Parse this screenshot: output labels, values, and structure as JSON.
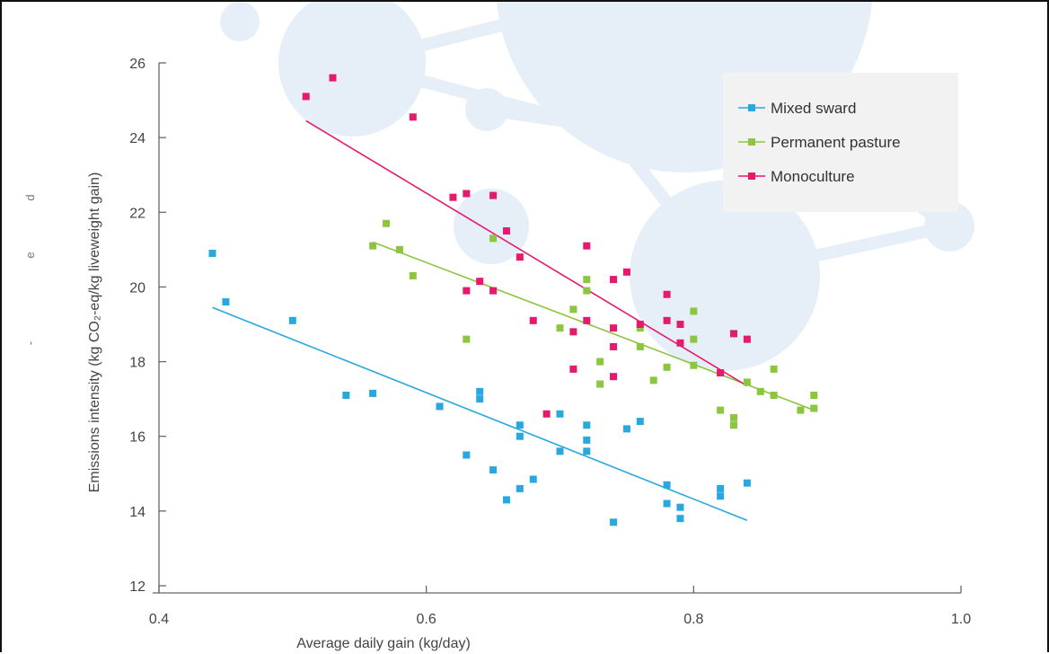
{
  "chart_data": {
    "type": "scatter",
    "title": "",
    "xlabel": "Average daily gain (kg/day)",
    "ylabel": "Emissions intensity (kg CO₂-eq/kg liveweight gain)",
    "xlim": [
      0.4,
      1.0
    ],
    "ylim": [
      12,
      26
    ],
    "x_ticks": [
      "0.4",
      "0.6",
      "0.8",
      "1.0"
    ],
    "y_ticks": [
      "12",
      "14",
      "16",
      "18",
      "20",
      "22",
      "24",
      "26"
    ],
    "legend_position": "top-right",
    "grid": false,
    "series": [
      {
        "name": "Mixed sward",
        "color": "#29a7df",
        "points": [
          [
            0.44,
            20.9
          ],
          [
            0.45,
            19.6
          ],
          [
            0.5,
            19.1
          ],
          [
            0.54,
            17.1
          ],
          [
            0.56,
            17.15
          ],
          [
            0.61,
            16.8
          ],
          [
            0.63,
            15.5
          ],
          [
            0.64,
            17.2
          ],
          [
            0.64,
            17.0
          ],
          [
            0.65,
            15.1
          ],
          [
            0.66,
            14.3
          ],
          [
            0.67,
            16.3
          ],
          [
            0.67,
            16.0
          ],
          [
            0.67,
            14.6
          ],
          [
            0.68,
            14.85
          ],
          [
            0.7,
            16.6
          ],
          [
            0.7,
            15.6
          ],
          [
            0.72,
            16.3
          ],
          [
            0.72,
            15.9
          ],
          [
            0.72,
            15.6
          ],
          [
            0.74,
            13.7
          ],
          [
            0.75,
            16.2
          ],
          [
            0.76,
            16.4
          ],
          [
            0.78,
            14.7
          ],
          [
            0.78,
            14.2
          ],
          [
            0.79,
            14.1
          ],
          [
            0.79,
            13.8
          ],
          [
            0.82,
            14.6
          ],
          [
            0.82,
            14.4
          ],
          [
            0.84,
            14.75
          ]
        ],
        "trend": [
          [
            0.44,
            19.45
          ],
          [
            0.84,
            13.75
          ]
        ]
      },
      {
        "name": "Permanent pasture",
        "color": "#8cc63f",
        "points": [
          [
            0.56,
            21.1
          ],
          [
            0.57,
            21.7
          ],
          [
            0.58,
            21.0
          ],
          [
            0.59,
            20.3
          ],
          [
            0.63,
            18.6
          ],
          [
            0.65,
            21.3
          ],
          [
            0.7,
            18.9
          ],
          [
            0.71,
            19.4
          ],
          [
            0.72,
            20.2
          ],
          [
            0.72,
            19.9
          ],
          [
            0.73,
            18.0
          ],
          [
            0.73,
            17.4
          ],
          [
            0.76,
            18.9
          ],
          [
            0.76,
            18.4
          ],
          [
            0.77,
            17.5
          ],
          [
            0.78,
            17.85
          ],
          [
            0.8,
            19.35
          ],
          [
            0.8,
            18.6
          ],
          [
            0.8,
            17.9
          ],
          [
            0.82,
            16.7
          ],
          [
            0.82,
            17.7
          ],
          [
            0.83,
            16.5
          ],
          [
            0.83,
            16.3
          ],
          [
            0.84,
            17.45
          ],
          [
            0.85,
            17.2
          ],
          [
            0.86,
            17.8
          ],
          [
            0.86,
            17.1
          ],
          [
            0.88,
            16.7
          ],
          [
            0.89,
            17.1
          ],
          [
            0.89,
            16.75
          ]
        ],
        "trend": [
          [
            0.56,
            21.2
          ],
          [
            0.89,
            16.7
          ]
        ]
      },
      {
        "name": "Monoculture",
        "color": "#e6196f",
        "points": [
          [
            0.51,
            25.1
          ],
          [
            0.53,
            25.6
          ],
          [
            0.59,
            24.55
          ],
          [
            0.62,
            22.4
          ],
          [
            0.63,
            22.5
          ],
          [
            0.63,
            19.9
          ],
          [
            0.64,
            20.15
          ],
          [
            0.65,
            22.45
          ],
          [
            0.65,
            19.9
          ],
          [
            0.66,
            21.5
          ],
          [
            0.67,
            20.8
          ],
          [
            0.68,
            19.1
          ],
          [
            0.69,
            16.6
          ],
          [
            0.71,
            18.8
          ],
          [
            0.71,
            17.8
          ],
          [
            0.72,
            21.1
          ],
          [
            0.72,
            19.1
          ],
          [
            0.74,
            20.2
          ],
          [
            0.74,
            18.9
          ],
          [
            0.74,
            18.4
          ],
          [
            0.74,
            17.6
          ],
          [
            0.75,
            20.4
          ],
          [
            0.76,
            19.0
          ],
          [
            0.78,
            19.8
          ],
          [
            0.78,
            19.1
          ],
          [
            0.79,
            19.0
          ],
          [
            0.79,
            18.5
          ],
          [
            0.82,
            17.7
          ],
          [
            0.83,
            18.75
          ],
          [
            0.84,
            18.6
          ]
        ],
        "trend": [
          [
            0.51,
            24.45
          ],
          [
            0.84,
            17.35
          ]
        ]
      }
    ]
  },
  "stray_marks": [
    "d",
    "e",
    "-"
  ]
}
